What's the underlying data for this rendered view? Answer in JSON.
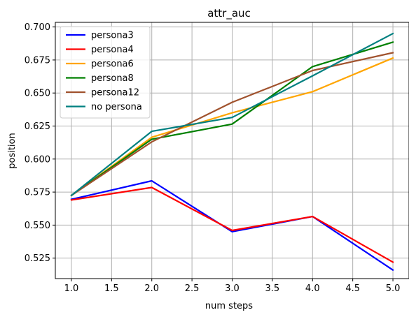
{
  "chart_data": {
    "type": "line",
    "title": "attr_auc",
    "xlabel": "num steps",
    "ylabel": "position",
    "xlim": [
      0.8,
      5.2
    ],
    "ylim": [
      0.5095,
      0.7035
    ],
    "xticks": [
      1.0,
      1.5,
      2.0,
      2.5,
      3.0,
      3.5,
      4.0,
      4.5,
      5.0
    ],
    "xtick_labels": [
      "1.0",
      "1.5",
      "2.0",
      "2.5",
      "3.0",
      "3.5",
      "4.0",
      "4.5",
      "5.0"
    ],
    "yticks": [
      0.525,
      0.55,
      0.575,
      0.6,
      0.625,
      0.65,
      0.675,
      0.7
    ],
    "ytick_labels": [
      "0.525",
      "0.550",
      "0.575",
      "0.600",
      "0.625",
      "0.650",
      "0.675",
      "0.700"
    ],
    "grid": true,
    "legend_position": "top-left",
    "x": [
      1,
      2,
      3,
      4,
      5
    ],
    "series": [
      {
        "name": "persona3",
        "color": "#0000ff",
        "values": [
          0.5695,
          0.5835,
          0.545,
          0.5565,
          0.516
        ]
      },
      {
        "name": "persona4",
        "color": "#ff0000",
        "values": [
          0.569,
          0.5785,
          0.546,
          0.5565,
          0.522
        ]
      },
      {
        "name": "persona6",
        "color": "#ffa500",
        "values": [
          0.5725,
          0.6165,
          0.635,
          0.651,
          0.6765
        ]
      },
      {
        "name": "persona8",
        "color": "#008000",
        "values": [
          0.5725,
          0.615,
          0.6265,
          0.67,
          0.6885
        ]
      },
      {
        "name": "persona12",
        "color": "#a0522d",
        "values": [
          0.5725,
          0.613,
          0.643,
          0.667,
          0.6805
        ]
      },
      {
        "name": "no persona",
        "color": "#008080",
        "values": [
          0.5725,
          0.621,
          0.6315,
          0.663,
          0.695
        ]
      }
    ]
  }
}
